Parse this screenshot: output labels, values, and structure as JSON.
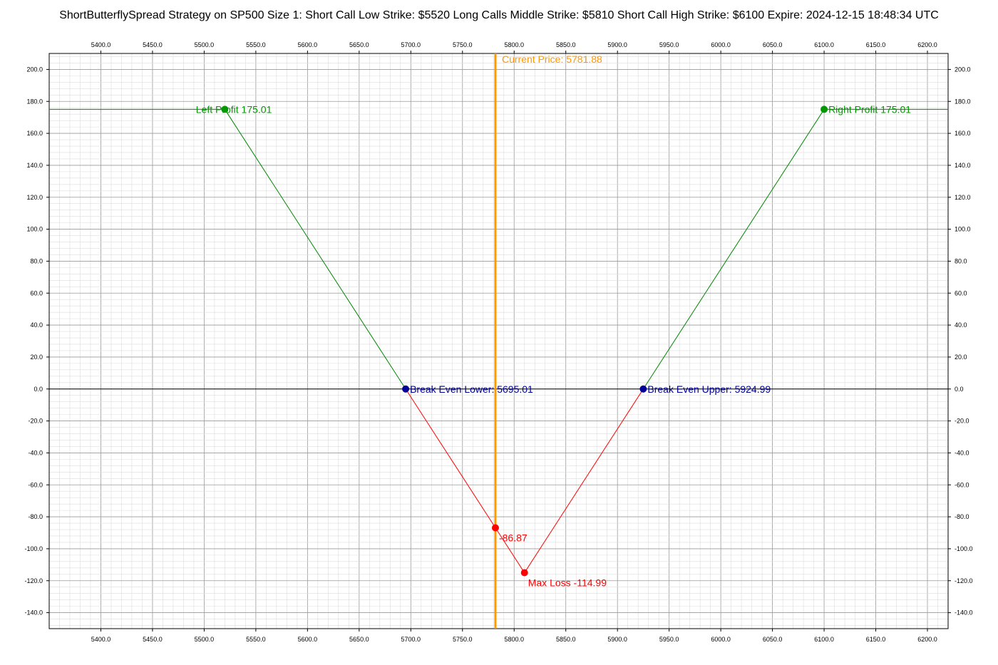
{
  "chart_data": {
    "type": "line",
    "title": "ShortButterflySpread Strategy on SP500 Size 1:  Short Call Low Strike: $5520  Long Calls Middle Strike: $5810  Short Call High Strike: $6100  Expire: 2024-12-15 18:48:34 UTC",
    "xlabel": "",
    "ylabel": "",
    "xlim": [
      5350,
      6220
    ],
    "ylim": [
      -150,
      210
    ],
    "grid": true,
    "x_ticks": [
      5400,
      5450,
      5500,
      5550,
      5600,
      5650,
      5700,
      5750,
      5800,
      5850,
      5900,
      5950,
      6000,
      6050,
      6100,
      6150,
      6200
    ],
    "x_tick_labels": [
      "5400.0",
      "5450.0",
      "5500.0",
      "5550.0",
      "5600.0",
      "5650.0",
      "5700.0",
      "5750.0",
      "5800.0",
      "5850.0",
      "5900.0",
      "5950.0",
      "6000.0",
      "6050.0",
      "6100.0",
      "6150.0",
      "6200.0"
    ],
    "y_ticks": [
      200,
      180,
      160,
      140,
      120,
      100,
      80,
      60,
      40,
      20,
      0,
      -20,
      -40,
      -60,
      -80,
      -100,
      -120,
      -140
    ],
    "y_tick_labels": [
      "200.0",
      "180.0",
      "160.0",
      "140.0",
      "120.0",
      "100.0",
      "80.0",
      "60.0",
      "40.0",
      "20.0",
      "0.0",
      "-20.0",
      "-40.0",
      "-60.0",
      "-80.0",
      "-100.0",
      "-120.0",
      "-140.0"
    ],
    "series": [
      {
        "color": "#008800",
        "values": [
          [
            5350,
            175.01
          ],
          [
            5520,
            175.01
          ],
          [
            5695.01,
            0
          ]
        ]
      },
      {
        "color": "#ff0000",
        "values": [
          [
            5695.01,
            0
          ],
          [
            5810,
            -114.99
          ],
          [
            5924.99,
            0
          ]
        ]
      },
      {
        "color": "#008800",
        "values": [
          [
            5924.99,
            0
          ],
          [
            6100,
            175.01
          ],
          [
            6220,
            175.01
          ]
        ]
      }
    ],
    "current_price": {
      "x": 5781.88,
      "label": "Current Price: 5781.88",
      "color": "#ff9900"
    },
    "points": [
      {
        "x": 5520,
        "y": 175.01,
        "label": "Left Profit 175.01",
        "color": "#009900",
        "anchor": "end",
        "pos": "left"
      },
      {
        "x": 6100,
        "y": 175.01,
        "label": "Right Profit 175.01",
        "color": "#009900",
        "anchor": "start",
        "pos": "right"
      },
      {
        "x": 5695.01,
        "y": 0,
        "label": "Break Even Lower: 5695.01",
        "color": "#000099",
        "anchor": "start",
        "pos": "right"
      },
      {
        "x": 5924.99,
        "y": 0,
        "label": "Break Even Upper: 5924.99",
        "color": "#000099",
        "anchor": "start",
        "pos": "right"
      },
      {
        "x": 5781.88,
        "y": -86.87,
        "label": "-86.87",
        "color": "#ff0000",
        "anchor": "start",
        "pos": "below-right"
      },
      {
        "x": 5810,
        "y": -114.99,
        "label": "Max Loss -114.99",
        "color": "#ff0000",
        "anchor": "start",
        "pos": "below-right"
      }
    ]
  }
}
